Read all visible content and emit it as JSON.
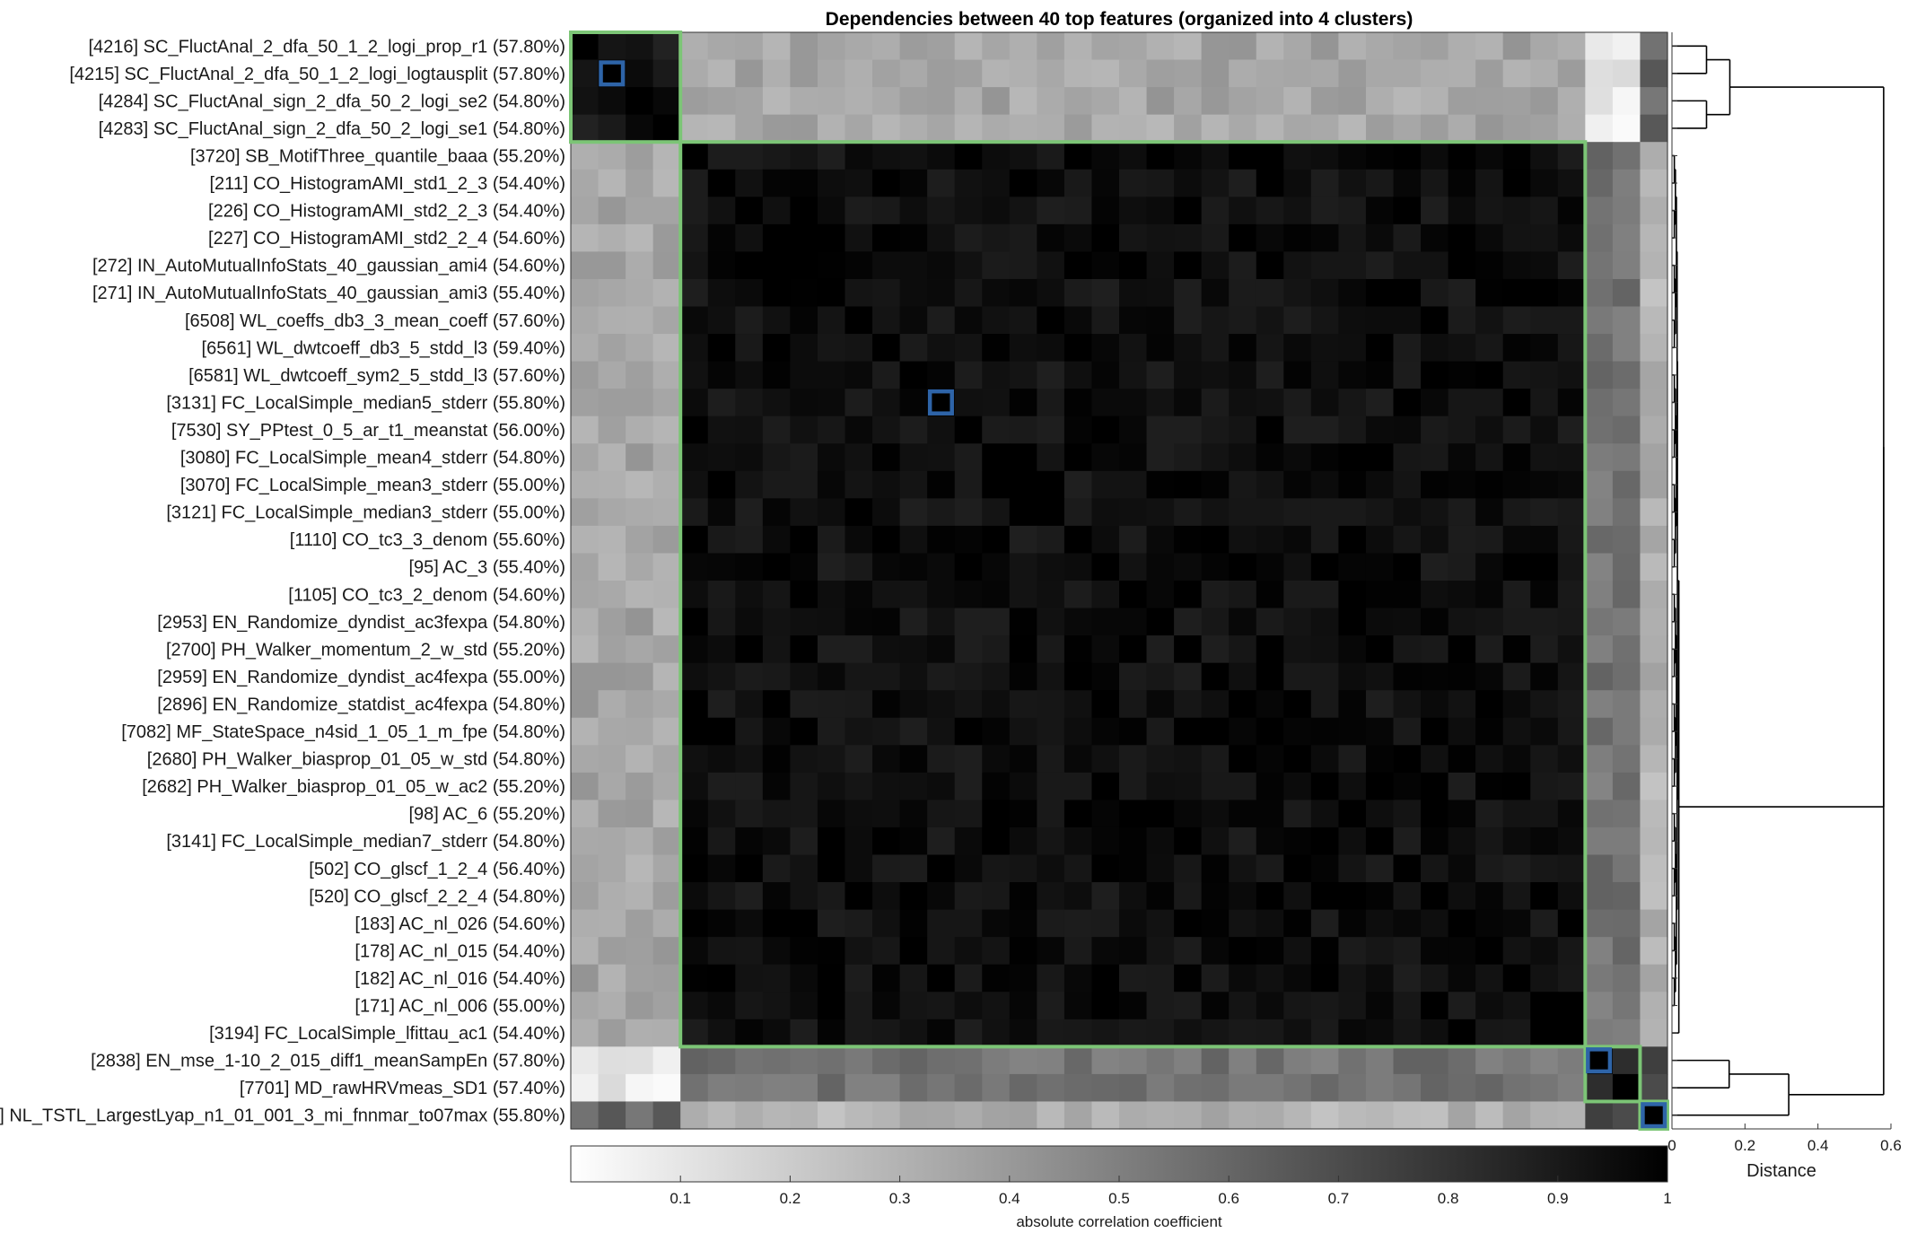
{
  "chart_data": {
    "type": "heatmap",
    "title": "Dependencies between 40 top features (organized into 4 clusters)",
    "features": [
      "[4216] SC_FluctAnal_2_dfa_50_1_2_logi_prop_r1 (57.80%)",
      "[4215] SC_FluctAnal_2_dfa_50_1_2_logi_logtausplit (57.80%)",
      "[4284] SC_FluctAnal_sign_2_dfa_50_2_logi_se2 (54.80%)",
      "[4283] SC_FluctAnal_sign_2_dfa_50_2_logi_se1 (54.80%)",
      "[3720] SB_MotifThree_quantile_baaa (55.20%)",
      "[211] CO_HistogramAMI_std1_2_3 (54.40%)",
      "[226] CO_HistogramAMI_std2_2_3 (54.40%)",
      "[227] CO_HistogramAMI_std2_2_4 (54.60%)",
      "[272] IN_AutoMutualInfoStats_40_gaussian_ami4 (54.60%)",
      "[271] IN_AutoMutualInfoStats_40_gaussian_ami3 (55.40%)",
      "[6508] WL_coeffs_db3_3_mean_coeff (57.60%)",
      "[6561] WL_dwtcoeff_db3_5_stdd_l3 (59.40%)",
      "[6581] WL_dwtcoeff_sym2_5_stdd_l3 (57.60%)",
      "[3131] FC_LocalSimple_median5_stderr (55.80%)",
      "[7530] SY_PPtest_0_5_ar_t1_meanstat (56.00%)",
      "[3080] FC_LocalSimple_mean4_stderr (54.80%)",
      "[3070] FC_LocalSimple_mean3_stderr (55.00%)",
      "[3121] FC_LocalSimple_median3_stderr (55.00%)",
      "[1110] CO_tc3_3_denom (55.60%)",
      "[95] AC_3 (55.40%)",
      "[1105] CO_tc3_2_denom (54.60%)",
      "[2953] EN_Randomize_dyndist_ac3fexpa (54.80%)",
      "[2700] PH_Walker_momentum_2_w_std (55.20%)",
      "[2959] EN_Randomize_dyndist_ac4fexpa (55.00%)",
      "[2896] EN_Randomize_statdist_ac4fexpa (54.80%)",
      "[7082] MF_StateSpace_n4sid_1_05_1_m_fpe (54.80%)",
      "[2680] PH_Walker_biasprop_01_05_w_std (54.80%)",
      "[2682] PH_Walker_biasprop_01_05_w_ac2 (55.20%)",
      "[98] AC_6 (55.20%)",
      "[3141] FC_LocalSimple_median7_stderr (54.80%)",
      "[502] CO_glscf_1_2_4 (56.40%)",
      "[520] CO_glscf_2_2_4 (54.80%)",
      "[183] AC_nl_026 (54.60%)",
      "[178] AC_nl_015 (54.40%)",
      "[182] AC_nl_016 (54.40%)",
      "[171] AC_nl_006 (55.00%)",
      "[3194] FC_LocalSimple_lfittau_ac1 (54.40%)",
      "[2838] EN_mse_1-10_2_015_diff1_meanSampEn (57.80%)",
      "[7701] MD_rawHRVmeas_SD1 (57.40%)",
      "] NL_TSTL_LargestLyap_n1_01_001_3_mi_fnnmar_to07max (55.80%)"
    ],
    "cluster_bounds": [
      [
        0,
        3
      ],
      [
        4,
        36
      ],
      [
        37,
        38
      ],
      [
        39,
        39
      ]
    ],
    "cluster_centers": [
      1,
      13,
      37,
      39
    ],
    "within_cluster_correlation": [
      0.92,
      0.95,
      0.8,
      1.0
    ],
    "between_cluster_correlation": [
      [
        1.0,
        0.35,
        0.08,
        0.6
      ],
      [
        0.35,
        1.0,
        0.55,
        0.3
      ],
      [
        0.08,
        0.55,
        1.0,
        0.75
      ],
      [
        0.6,
        0.3,
        0.75,
        1.0
      ]
    ],
    "colorbar": {
      "label": "absolute correlation coefficient",
      "min": 0,
      "max": 1,
      "ticks": [
        0.1,
        0.2,
        0.3,
        0.4,
        0.5,
        0.6,
        0.7,
        0.8,
        0.9,
        1
      ],
      "tick_labels": [
        "0.1",
        "0.2",
        "0.3",
        "0.4",
        "0.5",
        "0.6",
        "0.7",
        "0.8",
        "0.9",
        "1"
      ],
      "colormap": "white-to-black"
    },
    "dendrogram": {
      "xlabel": "Distance",
      "xlim": [
        0,
        0.6
      ],
      "ticks": [
        0,
        0.2,
        0.4,
        0.6
      ],
      "tick_labels": [
        "0",
        "0.2",
        "0.4",
        "0.6"
      ],
      "top_merge_distance": 0.58,
      "cluster_merge_distances": [
        0.16,
        0.02,
        0.18,
        0.0
      ],
      "cluster_pair_merges": [
        [
          0,
          1,
          0.58
        ],
        [
          2,
          3,
          0.32
        ]
      ]
    },
    "colors": {
      "cluster_box": "#7cc576",
      "center_box": "#2e64a8"
    }
  }
}
